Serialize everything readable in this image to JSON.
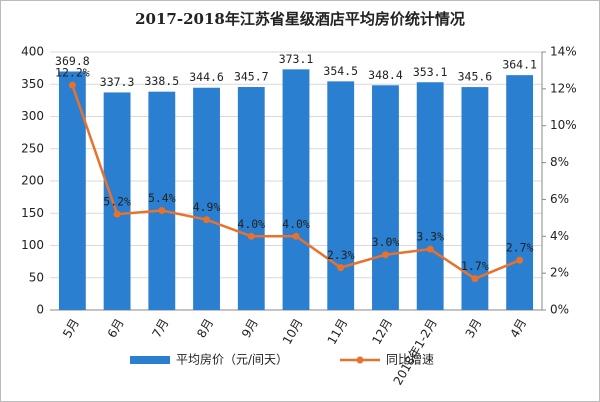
{
  "chart_data": {
    "type": "bar-line",
    "title": "2017-2018年江苏省星级酒店平均房价统计情况",
    "categories": [
      "5月",
      "6月",
      "7月",
      "8月",
      "9月",
      "10月",
      "11月",
      "12月",
      "2018年1-2月",
      "3月",
      "4月"
    ],
    "series": [
      {
        "name": "平均房价（元/间天）",
        "type": "bar",
        "color": "#2a7fd0",
        "values": [
          369.8,
          337.3,
          338.5,
          344.6,
          345.7,
          373.1,
          354.5,
          348.4,
          353.1,
          345.6,
          364.1
        ]
      },
      {
        "name": "同比增速",
        "type": "line",
        "axis": "y2",
        "color": "#e8712d",
        "values": [
          12.2,
          5.2,
          5.4,
          4.9,
          4.0,
          4.0,
          2.3,
          3.0,
          3.3,
          1.7,
          2.7
        ],
        "value_labels": [
          "12.2%",
          "5.2%",
          "5.4%",
          "4.9%",
          "4.0%",
          "4.0%",
          "2.3%",
          "3.0%",
          "3.3%",
          "1.7%",
          "2.7%"
        ]
      }
    ],
    "ylim": [
      0,
      400
    ],
    "yticks": [
      0,
      50,
      100,
      150,
      200,
      250,
      300,
      350,
      400
    ],
    "y2lim": [
      0,
      14
    ],
    "y2ticks": [
      {
        "value": 0,
        "label": "0%"
      },
      {
        "value": 2,
        "label": "2%"
      },
      {
        "value": 4,
        "label": "4%"
      },
      {
        "value": 6,
        "label": "6%"
      },
      {
        "value": 8,
        "label": "8%"
      },
      {
        "value": 10,
        "label": "10%"
      },
      {
        "value": 12,
        "label": "12%"
      },
      {
        "value": 14,
        "label": "14%"
      }
    ],
    "grid": true,
    "legend": "bottom"
  }
}
